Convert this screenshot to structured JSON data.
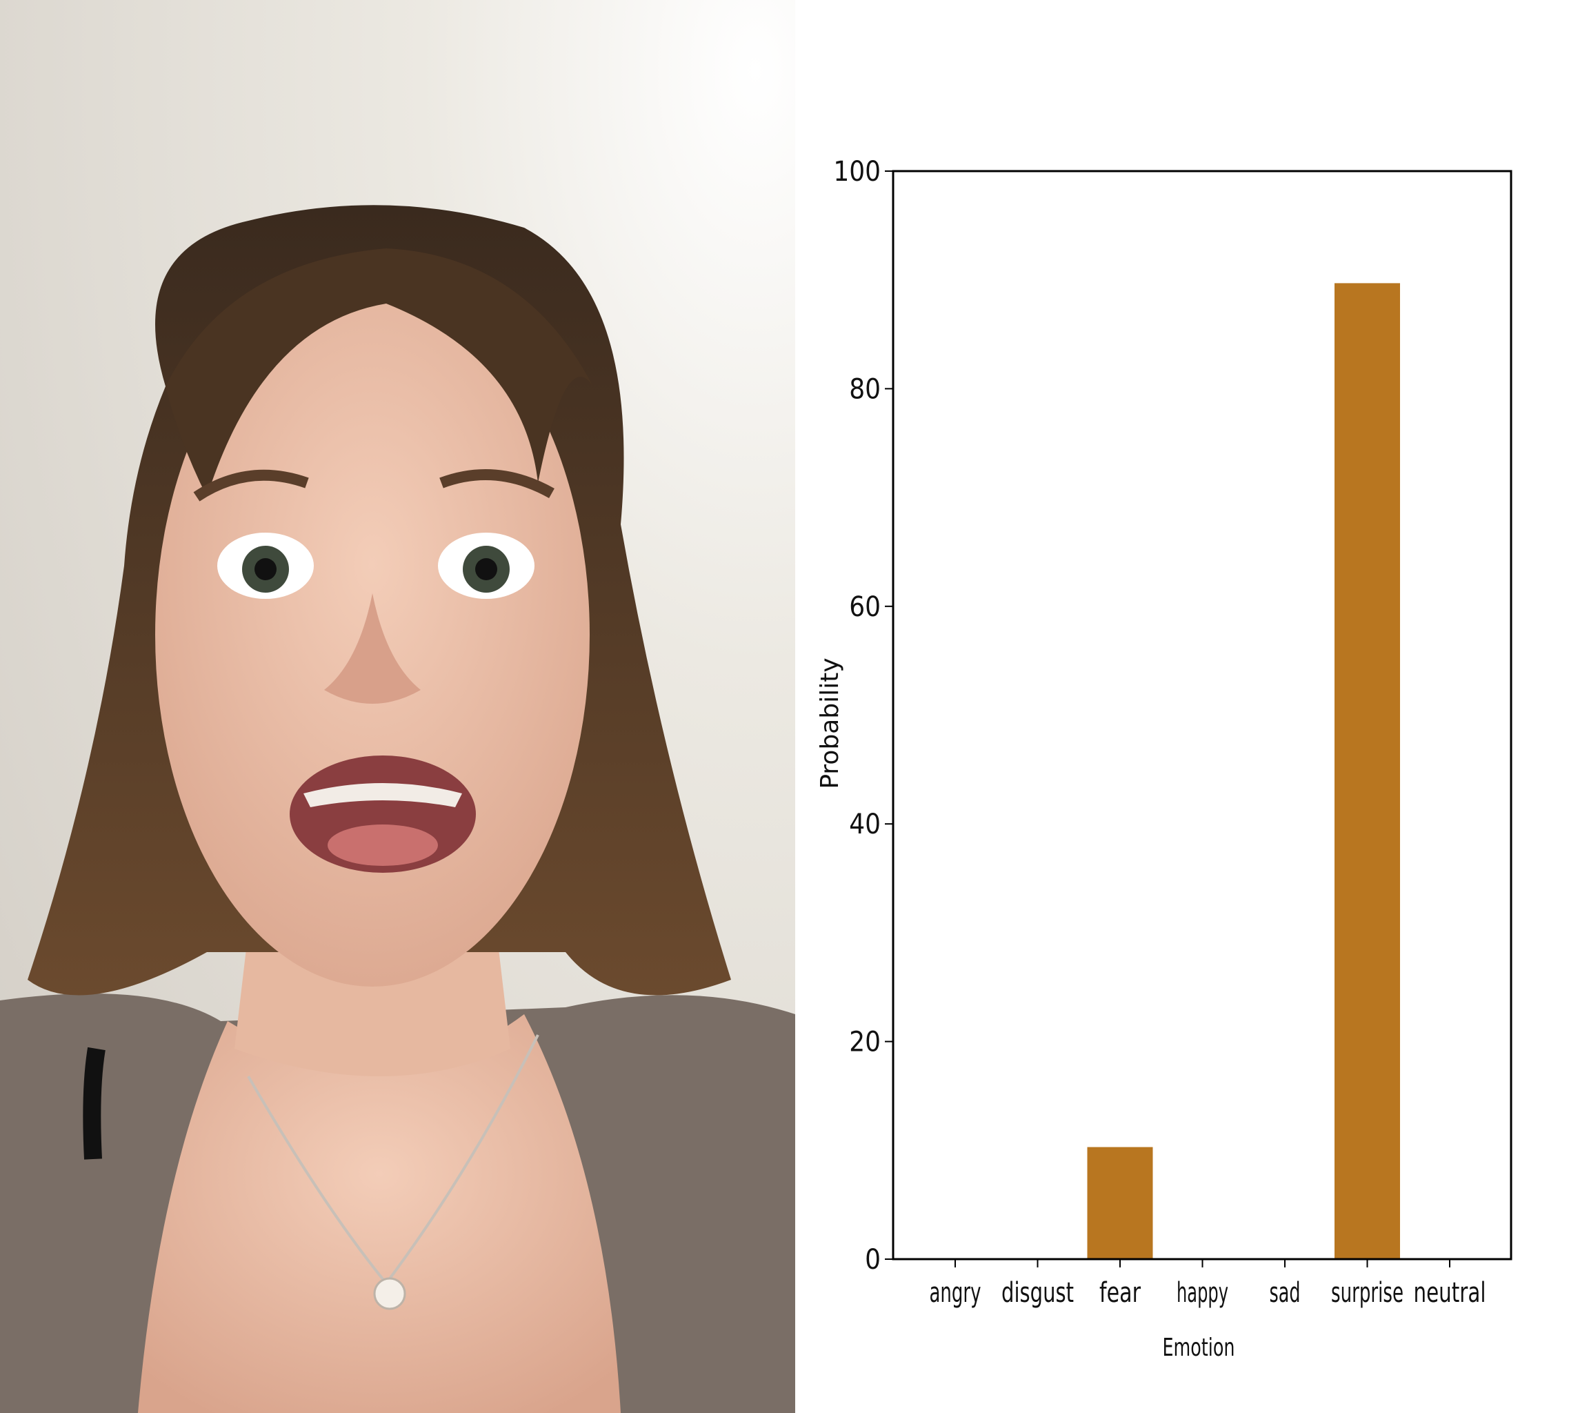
{
  "photo": {
    "subject": "portrait-photo"
  },
  "colors": {
    "bar": "#b87620",
    "axis": "#000000",
    "background": "#ffffff"
  },
  "chart_data": {
    "type": "bar",
    "categories": [
      "angry",
      "disgust",
      "fear",
      "happy",
      "sad",
      "surprise",
      "neutral"
    ],
    "values": [
      0,
      0,
      10.3,
      0,
      0,
      89.7,
      0
    ],
    "title": "",
    "xlabel": "Emotion",
    "ylabel": "Probability",
    "ylim": [
      0,
      100
    ],
    "yticks": [
      0,
      20,
      40,
      60,
      80,
      100
    ],
    "grid": false,
    "legend": "none"
  }
}
